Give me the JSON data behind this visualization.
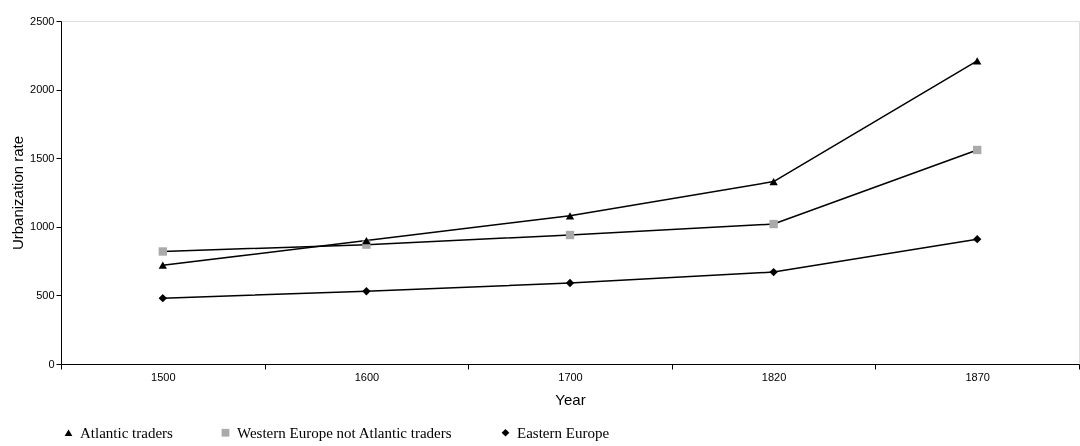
{
  "chart_data": {
    "type": "line",
    "xlabel": "Year",
    "ylabel": "Urbanization rate",
    "categories": [
      "1500",
      "1600",
      "1700",
      "1820",
      "1870"
    ],
    "series": [
      {
        "name": "Atlantic traders",
        "color": "#000000",
        "marker": "triangle",
        "values": [
          720,
          900,
          1080,
          1330,
          2210
        ]
      },
      {
        "name": "Western Europe not Atlantic traders",
        "color": "#aaaaaa",
        "marker": "square",
        "values": [
          820,
          870,
          940,
          1020,
          1560
        ]
      },
      {
        "name": "Eastern Europe",
        "color": "#000000",
        "marker": "diamond",
        "values": [
          480,
          530,
          590,
          670,
          910
        ]
      }
    ],
    "ylim": [
      0,
      2500
    ],
    "yticks": [
      0,
      500,
      1000,
      1500,
      2000,
      2500
    ],
    "grid": false,
    "legend": "bottom",
    "line_style": "solid"
  }
}
